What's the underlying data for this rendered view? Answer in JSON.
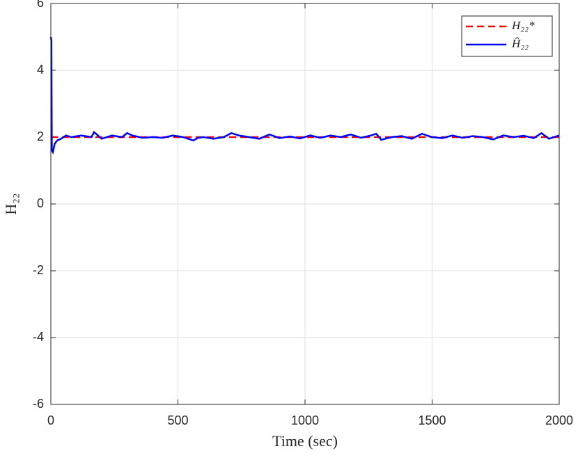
{
  "chart_data": {
    "type": "line",
    "xlabel": "Time (sec)",
    "ylabel": "H₂₂",
    "xlim": [
      0,
      2000
    ],
    "xticks": [
      0,
      500,
      1000,
      1500,
      2000
    ],
    "ylim": [
      -6,
      6
    ],
    "yticks": [
      -6,
      -4,
      -2,
      0,
      2,
      4,
      6
    ],
    "grid": true,
    "legend": "upper right",
    "series": [
      {
        "name": "H₂₂*",
        "color": "#ff0000",
        "linestyle": "dashed",
        "x": [
          0,
          2000
        ],
        "values": [
          2,
          2
        ]
      },
      {
        "name": "Ĥ₂₂",
        "color": "#0000ff",
        "linestyle": "solid",
        "x": [
          0,
          2,
          4,
          8,
          15,
          25,
          40,
          60,
          80,
          120,
          160,
          170,
          200,
          240,
          280,
          300,
          320,
          360,
          400,
          440,
          480,
          520,
          560,
          580,
          600,
          640,
          680,
          710,
          740,
          780,
          820,
          860,
          900,
          940,
          980,
          1020,
          1060,
          1100,
          1140,
          1180,
          1220,
          1260,
          1280,
          1300,
          1340,
          1380,
          1420,
          1460,
          1500,
          1540,
          1580,
          1620,
          1660,
          1700,
          1740,
          1780,
          1820,
          1860,
          1900,
          1930,
          1960,
          2000
        ],
        "values": [
          5,
          4.9,
          1.6,
          1.55,
          1.8,
          1.9,
          1.95,
          2.05,
          2.0,
          2.05,
          2.0,
          2.15,
          1.95,
          2.05,
          2.0,
          2.12,
          2.05,
          1.98,
          2.0,
          1.98,
          2.05,
          2.0,
          1.9,
          1.98,
          2.0,
          1.95,
          2.0,
          2.12,
          2.05,
          2.0,
          1.95,
          2.08,
          1.97,
          2.02,
          1.96,
          2.05,
          1.98,
          2.05,
          2.0,
          2.08,
          1.98,
          2.05,
          2.1,
          1.92,
          2.0,
          2.03,
          1.95,
          2.1,
          2.0,
          1.97,
          2.05,
          1.98,
          2.03,
          2.0,
          1.93,
          2.05,
          2.0,
          2.04,
          1.97,
          2.12,
          1.95,
          2.05
        ]
      }
    ]
  }
}
